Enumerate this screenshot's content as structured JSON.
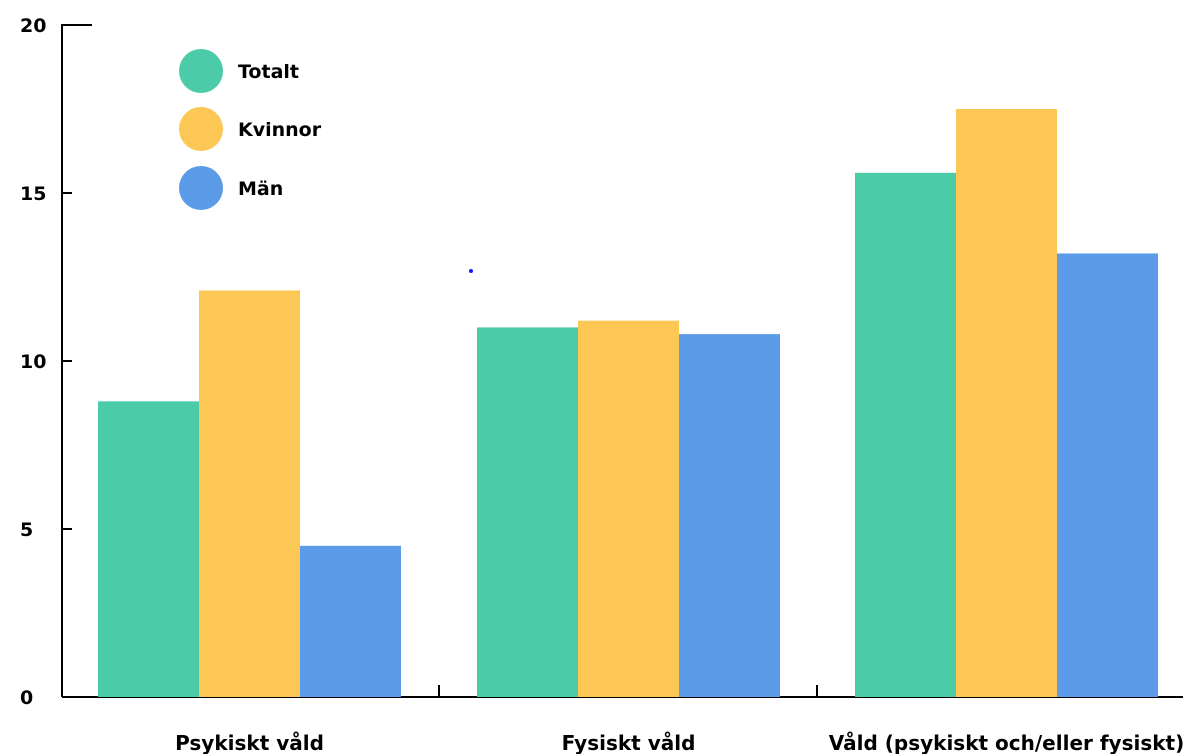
{
  "chart_data": {
    "type": "bar",
    "title": "",
    "xlabel": "",
    "ylabel": "",
    "ylim": [
      0,
      20
    ],
    "yticks": [
      0,
      5,
      10,
      15,
      20
    ],
    "categories": [
      "Psykiskt våld",
      "Fysiskt våld",
      "Våld (psykiskt och/eller fysiskt)"
    ],
    "series": [
      {
        "name": "Totalt",
        "color": "#4ccba9",
        "values": [
          8.8,
          11.0,
          15.6
        ]
      },
      {
        "name": "Kvinnor",
        "color": "#fdc755",
        "values": [
          12.1,
          11.2,
          17.5
        ]
      },
      {
        "name": "Män",
        "color": "#5b9be8",
        "values": [
          4.5,
          10.8,
          13.2
        ]
      }
    ],
    "legend_position": "top-left",
    "grid": false
  }
}
